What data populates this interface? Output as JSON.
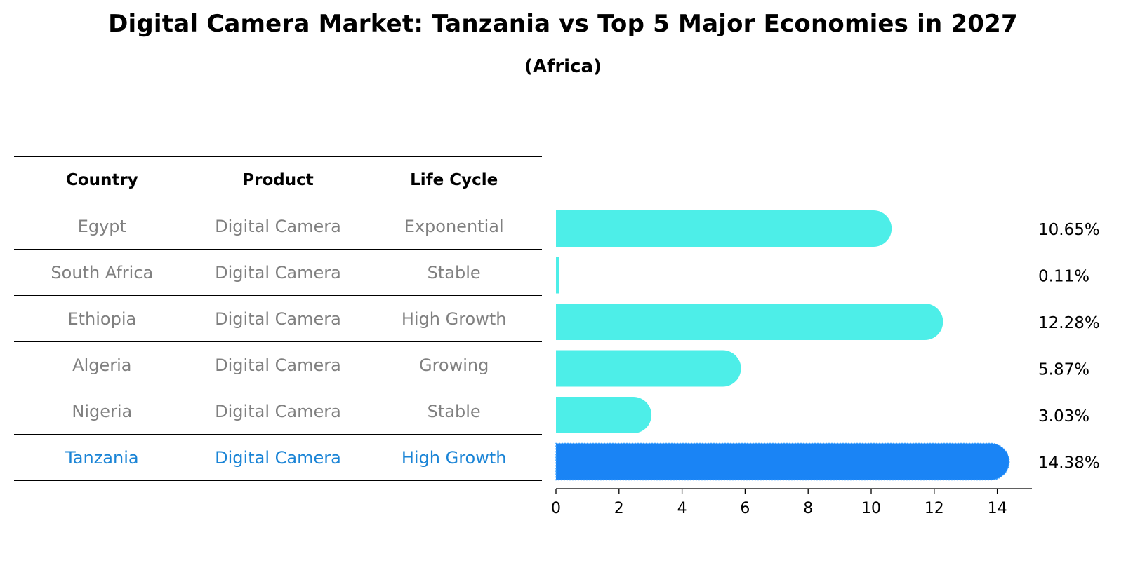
{
  "title": "Digital Camera Market: Tanzania vs Top 5 Major Economies in 2027",
  "subtitle": "(Africa)",
  "table": {
    "headers": [
      "Country",
      "Product",
      "Life Cycle"
    ],
    "rows": [
      {
        "country": "Egypt",
        "product": "Digital Camera",
        "life_cycle": "Exponential",
        "highlight": false
      },
      {
        "country": "South Africa",
        "product": "Digital Camera",
        "life_cycle": "Stable",
        "highlight": false
      },
      {
        "country": "Ethiopia",
        "product": "Digital Camera",
        "life_cycle": "High Growth",
        "highlight": false
      },
      {
        "country": "Algeria",
        "product": "Digital Camera",
        "life_cycle": "Growing",
        "highlight": false
      },
      {
        "country": "Nigeria",
        "product": "Digital Camera",
        "life_cycle": "Stable",
        "highlight": false
      },
      {
        "country": "Tanzania",
        "product": "Digital Camera",
        "life_cycle": "High Growth",
        "highlight": true
      }
    ]
  },
  "colors": {
    "bar": "#4deee8",
    "highlight_bar": "#1a84f5",
    "highlight_text": "#1a84d6",
    "muted_text": "#808080"
  },
  "chart_data": {
    "type": "bar",
    "orientation": "horizontal",
    "categories": [
      "Egypt",
      "South Africa",
      "Ethiopia",
      "Algeria",
      "Nigeria",
      "Tanzania"
    ],
    "values": [
      10.65,
      0.11,
      12.28,
      5.87,
      3.03,
      14.38
    ],
    "value_labels": [
      "10.65%",
      "0.11%",
      "12.28%",
      "5.87%",
      "3.03%",
      "14.38%"
    ],
    "highlight_category": "Tanzania",
    "xlim": [
      0,
      15
    ],
    "xticks": [
      0,
      2,
      4,
      6,
      8,
      10,
      12,
      14
    ],
    "xlabel": "",
    "ylabel": "",
    "grid": false
  }
}
